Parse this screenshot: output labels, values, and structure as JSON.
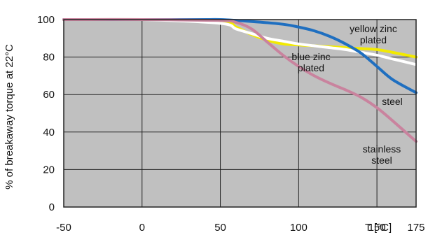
{
  "chart_data": {
    "type": "line",
    "xlabel": "T [°C]",
    "ylabel": "% of breakaway torque at 22°C",
    "xlim": [
      -50,
      175
    ],
    "ylim": [
      0,
      100
    ],
    "x_ticks": [
      "-50",
      "0",
      "50",
      "100",
      "150",
      "175"
    ],
    "y_ticks": [
      "0",
      "20",
      "40",
      "60",
      "80",
      "100"
    ],
    "grid": true,
    "background": "#c0c0c0",
    "series": [
      {
        "name": "yellow zinc plated",
        "label_lines": [
          "yellow zinc",
          "plated"
        ],
        "color": "#f2ea00",
        "points": [
          [
            -50,
            100
          ],
          [
            0,
            100
          ],
          [
            50,
            99.5
          ],
          [
            60,
            96
          ],
          [
            70,
            92
          ],
          [
            80,
            89
          ],
          [
            90,
            87
          ],
          [
            100,
            86.5
          ],
          [
            110,
            86
          ],
          [
            120,
            85.5
          ],
          [
            130,
            85
          ],
          [
            140,
            84.5
          ],
          [
            150,
            84
          ],
          [
            160,
            82.5
          ],
          [
            175,
            80
          ]
        ]
      },
      {
        "name": "blue zinc plated",
        "label_lines": [
          "blue zinc",
          "plated"
        ],
        "color": "#ffffff",
        "points": [
          [
            -50,
            100
          ],
          [
            0,
            100
          ],
          [
            50,
            98
          ],
          [
            60,
            95
          ],
          [
            70,
            92.5
          ],
          [
            80,
            90
          ],
          [
            90,
            88.5
          ],
          [
            100,
            87
          ],
          [
            110,
            86
          ],
          [
            120,
            85
          ],
          [
            130,
            84
          ],
          [
            140,
            82.5
          ],
          [
            150,
            81
          ],
          [
            160,
            79
          ],
          [
            175,
            76
          ]
        ]
      },
      {
        "name": "steel",
        "label_lines": [
          "steel"
        ],
        "color": "#1f6fc0",
        "points": [
          [
            -50,
            100
          ],
          [
            0,
            100
          ],
          [
            40,
            100
          ],
          [
            50,
            100
          ],
          [
            70,
            99
          ],
          [
            90,
            97.5
          ],
          [
            100,
            96
          ],
          [
            110,
            94
          ],
          [
            120,
            91
          ],
          [
            130,
            87
          ],
          [
            140,
            82
          ],
          [
            150,
            75
          ],
          [
            160,
            68
          ],
          [
            175,
            61
          ]
        ]
      },
      {
        "name": "stainless steel",
        "label_lines": [
          "stainless",
          "steel"
        ],
        "color": "#c9839e",
        "points": [
          [
            -50,
            100
          ],
          [
            0,
            100
          ],
          [
            50,
            99.5
          ],
          [
            60,
            98.5
          ],
          [
            70,
            95
          ],
          [
            80,
            88
          ],
          [
            90,
            81
          ],
          [
            100,
            75
          ],
          [
            110,
            70
          ],
          [
            120,
            66
          ],
          [
            130,
            62.5
          ],
          [
            140,
            58.5
          ],
          [
            150,
            53
          ],
          [
            160,
            46
          ],
          [
            175,
            35
          ]
        ]
      }
    ]
  }
}
